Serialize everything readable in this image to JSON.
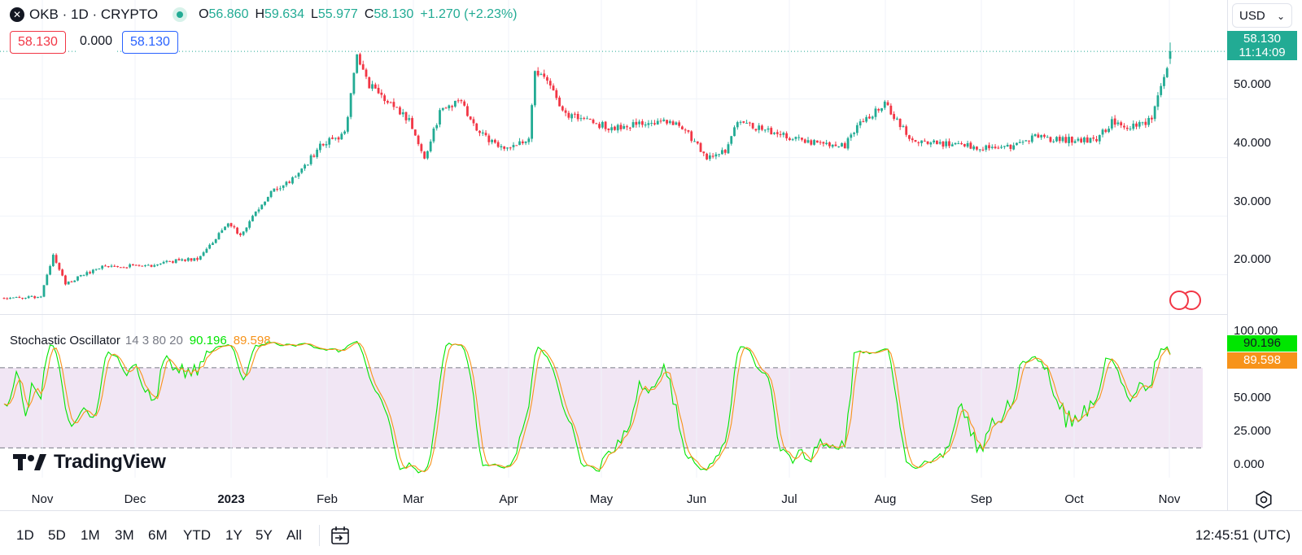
{
  "header": {
    "symbol": "OKB · 1D · CRYPTO",
    "logo_glyph": "✕",
    "open_label": "O",
    "open": "56.860",
    "high_label": "H",
    "high": "59.634",
    "low_label": "L",
    "low": "55.977",
    "close_label": "C",
    "close": "58.130",
    "change": "+1.270 (+2.23%)",
    "price_box_sell": "58.130",
    "price_box_spread": "0.000",
    "price_box_buy": "58.130",
    "currency": "USD",
    "currency_chevron": "⌄"
  },
  "price_axis": {
    "ticks": [
      "50.000",
      "40.000",
      "30.000",
      "20.000"
    ],
    "last_price": "58.130",
    "countdown": "11:14:09"
  },
  "stochastic": {
    "name": "Stochastic Oscillator",
    "params": "14 3 80 20",
    "k_value": "90.196",
    "d_value": "89.598",
    "ticks": [
      "100.000",
      "50.000",
      "25.000",
      "0.000"
    ]
  },
  "time_axis": {
    "months": [
      "Nov",
      "Dec",
      "2023",
      "Feb",
      "Mar",
      "Apr",
      "May",
      "Jun",
      "Jul",
      "Aug",
      "Sep",
      "Oct",
      "Nov"
    ]
  },
  "branding": {
    "logo_text": "TradingView"
  },
  "toolbar": {
    "timeframes": [
      "1D",
      "5D",
      "1M",
      "3M",
      "6M",
      "YTD",
      "1Y",
      "5Y",
      "All"
    ],
    "clock": "12:45:51 (UTC)"
  },
  "colors": {
    "up": "#22ab94",
    "down": "#f23645",
    "k_line": "#00e600",
    "d_line": "#f7931a",
    "band": "#f1e6f4",
    "grid": "#f0f3fa",
    "accent_blue": "#2962ff"
  },
  "chart_data": [
    {
      "type": "candlestick",
      "title": "OKB · 1D · CRYPTO",
      "x_start": "2022-10-24",
      "x_end": "2023-11-08",
      "ylim": [
        13.0,
        60.5
      ],
      "y_ticks": [
        20,
        30,
        40,
        50
      ],
      "grid": true,
      "anchors": [
        [
          "2022-10-24",
          16.0
        ],
        [
          "2022-11-05",
          16.2
        ],
        [
          "2022-11-09",
          23.5
        ],
        [
          "2022-11-13",
          18.5
        ],
        [
          "2022-11-25",
          21.5
        ],
        [
          "2022-12-10",
          21.5
        ],
        [
          "2022-12-20",
          22.5
        ],
        [
          "2022-12-26",
          22.8
        ],
        [
          "2023-01-05",
          28.5
        ],
        [
          "2023-01-09",
          27.0
        ],
        [
          "2023-01-19",
          34.0
        ],
        [
          "2023-01-27",
          36.5
        ],
        [
          "2023-02-04",
          42.0
        ],
        [
          "2023-02-12",
          44.0
        ],
        [
          "2023-02-16",
          57.5
        ],
        [
          "2023-02-20",
          52.5
        ],
        [
          "2023-03-05",
          46.5
        ],
        [
          "2023-03-10",
          40.0
        ],
        [
          "2023-03-15",
          47.5
        ],
        [
          "2023-03-21",
          50.0
        ],
        [
          "2023-03-28",
          44.0
        ],
        [
          "2023-04-06",
          41.5
        ],
        [
          "2023-04-13",
          43.0
        ],
        [
          "2023-04-15",
          55.0
        ],
        [
          "2023-04-20",
          52.0
        ],
        [
          "2023-04-24",
          47.5
        ],
        [
          "2023-05-10",
          45.0
        ],
        [
          "2023-05-22",
          46.0
        ],
        [
          "2023-06-01",
          46.0
        ],
        [
          "2023-06-10",
          40.0
        ],
        [
          "2023-06-16",
          41.0
        ],
        [
          "2023-06-20",
          46.0
        ],
        [
          "2023-07-01",
          44.5
        ],
        [
          "2023-07-10",
          43.0
        ],
        [
          "2023-07-25",
          42.0
        ],
        [
          "2023-07-31",
          46.5
        ],
        [
          "2023-08-07",
          49.0
        ],
        [
          "2023-08-16",
          43.0
        ],
        [
          "2023-08-31",
          42.0
        ],
        [
          "2023-09-15",
          41.5
        ],
        [
          "2023-09-25",
          43.5
        ],
        [
          "2023-10-05",
          43.0
        ],
        [
          "2023-10-15",
          43.0
        ],
        [
          "2023-10-20",
          46.0
        ],
        [
          "2023-10-24",
          45.0
        ],
        [
          "2023-10-30",
          46.0
        ],
        [
          "2023-11-02",
          46.5
        ],
        [
          "2023-11-04",
          51.0
        ],
        [
          "2023-11-07",
          55.5
        ],
        [
          "2023-11-08",
          58.13
        ]
      ],
      "last": {
        "open": 56.86,
        "high": 59.634,
        "low": 55.977,
        "close": 58.13
      }
    },
    {
      "type": "line",
      "title": "Stochastic Oscillator",
      "ylim": [
        -8,
        108
      ],
      "y_ticks": [
        0,
        25,
        50,
        100
      ],
      "bands": [
        20,
        80
      ],
      "series": [
        {
          "name": "%K",
          "color": "#00e600",
          "last": 90.196
        },
        {
          "name": "%D",
          "color": "#f7931a",
          "last": 89.598
        }
      ]
    }
  ]
}
